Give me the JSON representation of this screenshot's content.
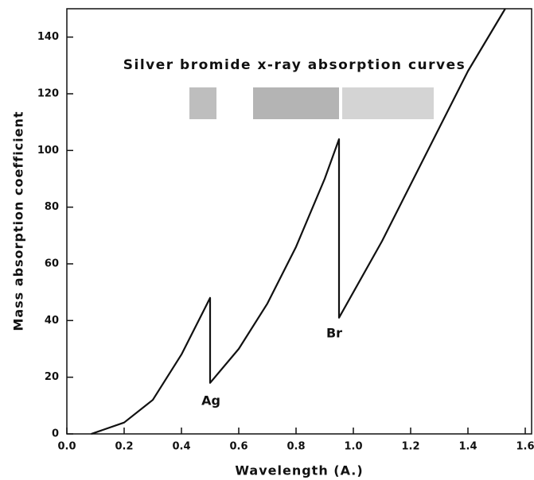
{
  "chart_data": {
    "type": "line",
    "title": "Silver bromide x-ray absorption curves",
    "x_label": "Wavelength (A.)",
    "y_label": "Mass absorption coefficient",
    "annotations": [
      "Ag",
      "Br"
    ],
    "x": [
      0.085,
      0.1,
      0.2,
      0.3,
      0.4,
      0.45,
      0.5,
      0.5,
      0.6,
      0.7,
      0.8,
      0.9,
      0.95,
      0.95,
      1.0,
      1.1,
      1.2,
      1.3,
      1.4,
      1.53
    ],
    "values": [
      0,
      0.5,
      4,
      12,
      28,
      38,
      48,
      18,
      30,
      46,
      66,
      90,
      104,
      41,
      50,
      68,
      88,
      108,
      128,
      150
    ],
    "color": "#111111",
    "xlim": [
      0,
      1.6
    ],
    "xticks": [
      {
        "value": 0,
        "label": "0.0"
      },
      0.2,
      0.4,
      0.6,
      0.8,
      {
        "value": 1,
        "label": "1.0"
      },
      1.2,
      1.4,
      1.6
    ],
    "ylim": [
      0,
      150
    ],
    "yticks": [
      0,
      20,
      40,
      60,
      80,
      100,
      120,
      140
    ],
    "grid": false
  }
}
